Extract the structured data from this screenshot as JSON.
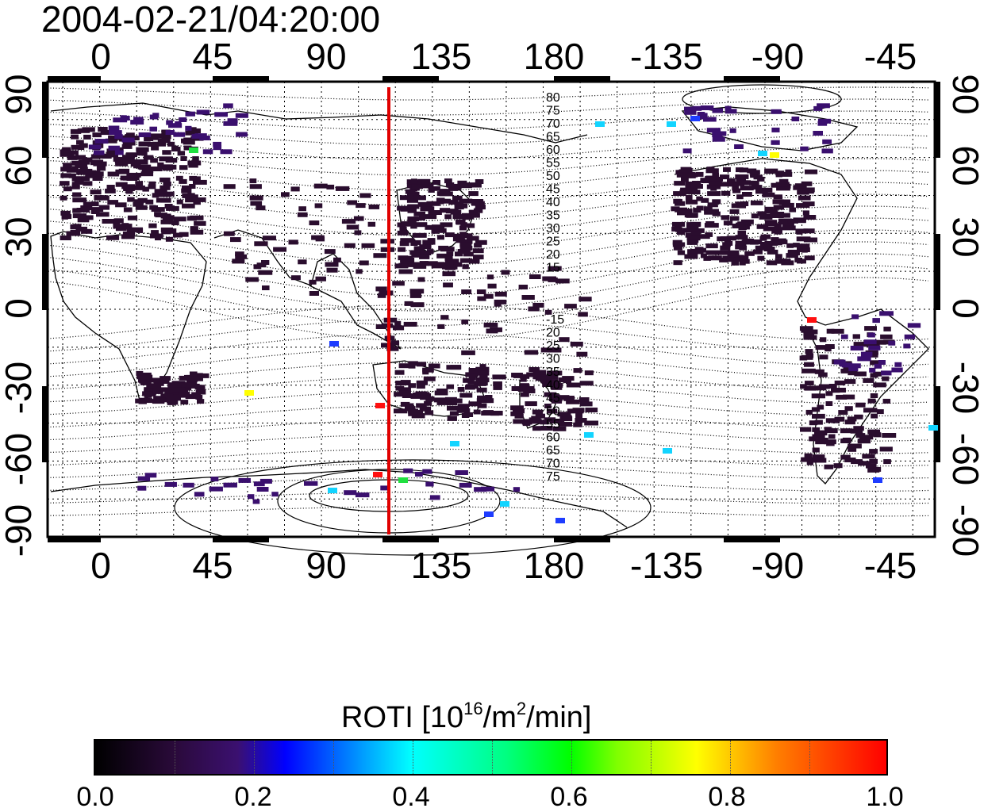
{
  "title": "2004-02-21/04:20:00",
  "top_ticks": [
    "0",
    "45",
    "90",
    "135",
    "180",
    "-135",
    "-90",
    "-45"
  ],
  "bottom_ticks": [
    "0",
    "45",
    "90",
    "135",
    "180",
    "-135",
    "-90",
    "-45"
  ],
  "left_ticks": [
    "90",
    "60",
    "30",
    "0",
    "-30",
    "-60",
    "-90"
  ],
  "right_ticks": [
    "90",
    "60",
    "30",
    "0",
    "-30",
    "-60",
    "-90"
  ],
  "contour_labels_north": [
    "80",
    "75",
    "70",
    "65",
    "60",
    "55",
    "50",
    "45",
    "40",
    "35",
    "30",
    "25",
    "20",
    "15"
  ],
  "contour_labels_south": [
    "-15",
    "20",
    "25",
    "30",
    "35",
    "40",
    "45",
    "50",
    "55",
    "60",
    "65",
    "70",
    "75"
  ],
  "colorbar": {
    "title_prefix": "ROTI  [10",
    "title_sup1": "16",
    "title_mid": "/m",
    "title_sup2": "2",
    "title_suffix": "/min]",
    "ticks": [
      "0.0",
      "0.2",
      "0.4",
      "0.6",
      "0.8",
      "1.0"
    ],
    "range": [
      0.0,
      1.0
    ]
  },
  "marker_line": {
    "longitude": 116,
    "color": "#e00000"
  },
  "colors": {
    "low": "#2a0d2e",
    "mid": "#3a0f6e",
    "blue": "#1e3cff",
    "cyan": "#12d4ff",
    "green": "#20e040",
    "yellow": "#ffff00",
    "red": "#ff1010"
  }
}
